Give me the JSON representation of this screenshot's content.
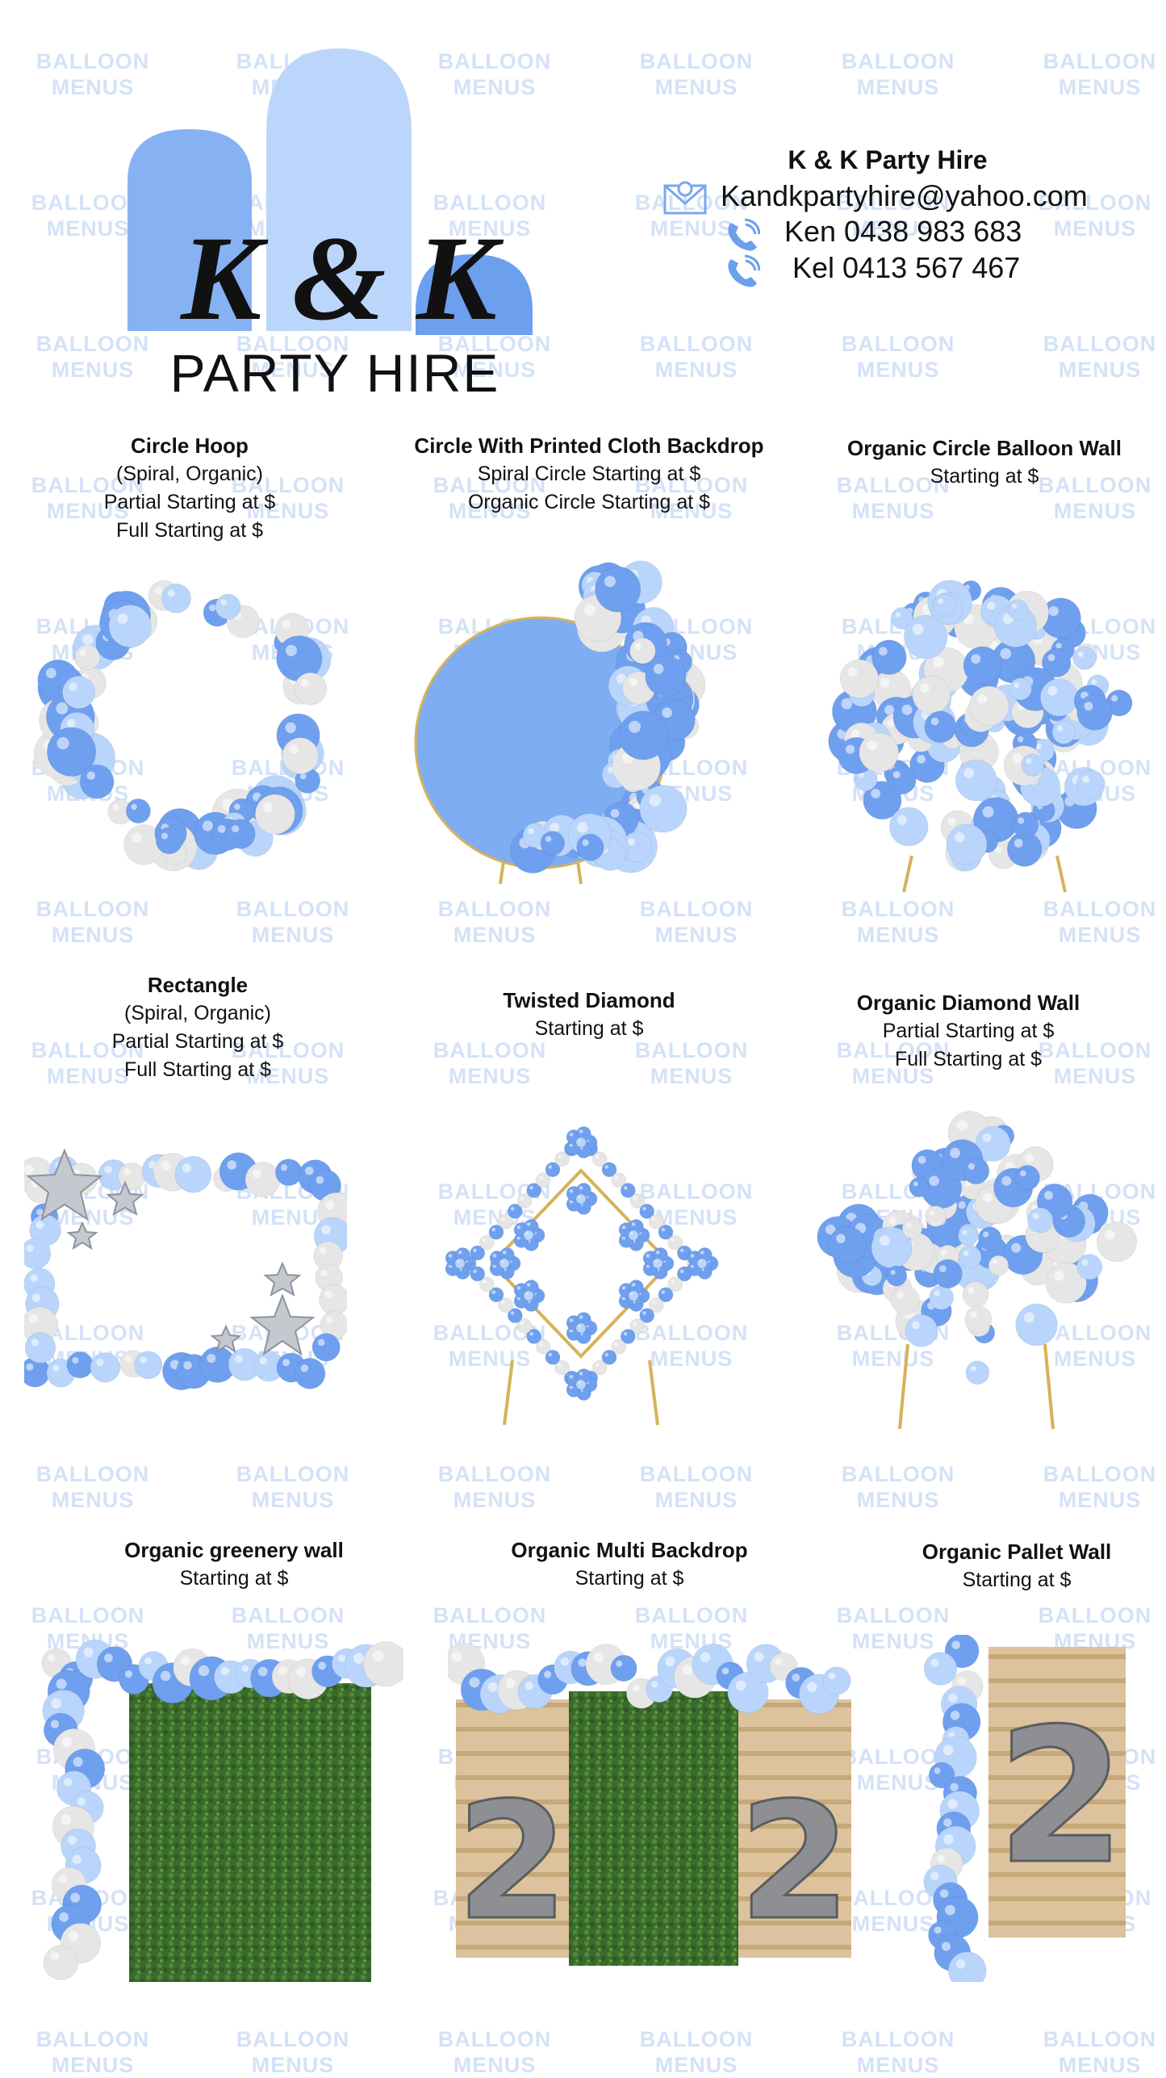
{
  "watermark": {
    "line1": "BALLOON",
    "line2": "MENUS"
  },
  "brand": {
    "logo_main": "K & K",
    "logo_sub": "PARTY HIRE"
  },
  "contact": {
    "title": "K & K Party Hire",
    "email": "Kandkpartyhire@yahoo.com",
    "phone_ken": "Ken 0438 983 683",
    "phone_kel": "Kel 0413 567 467"
  },
  "items": [
    {
      "title": "Circle Hoop",
      "lines": [
        "(Spiral, Organic)",
        "Partial Starting at $",
        "Full Starting at $"
      ]
    },
    {
      "title": "Circle With Printed Cloth Backdrop",
      "lines": [
        "Spiral Circle Starting at $",
        "Organic Circle Starting at $"
      ]
    },
    {
      "title": "Organic Circle Balloon Wall",
      "lines": [
        "Starting at $"
      ]
    },
    {
      "title": "Rectangle",
      "lines": [
        "(Spiral, Organic)",
        "Partial Starting at $",
        "Full Starting at $"
      ]
    },
    {
      "title": "Twisted Diamond",
      "lines": [
        "Starting at $"
      ]
    },
    {
      "title": "Organic Diamond Wall",
      "lines": [
        "Partial Starting at $",
        "Full Starting at $"
      ]
    },
    {
      "title": "Organic greenery wall",
      "lines": [
        "Starting at $"
      ]
    },
    {
      "title": "Organic Multi Backdrop",
      "lines": [
        "Starting at $"
      ]
    },
    {
      "title": "Organic Pallet Wall",
      "lines": [
        "Starting at $"
      ]
    }
  ],
  "colors": {
    "blue": "#6f9fef",
    "light_blue": "#b9d5fb",
    "white_balloon": "#e6e6e6",
    "green": "#3a6b2c",
    "wood": "#d9bc92",
    "watermark": "#d4e2f7"
  }
}
